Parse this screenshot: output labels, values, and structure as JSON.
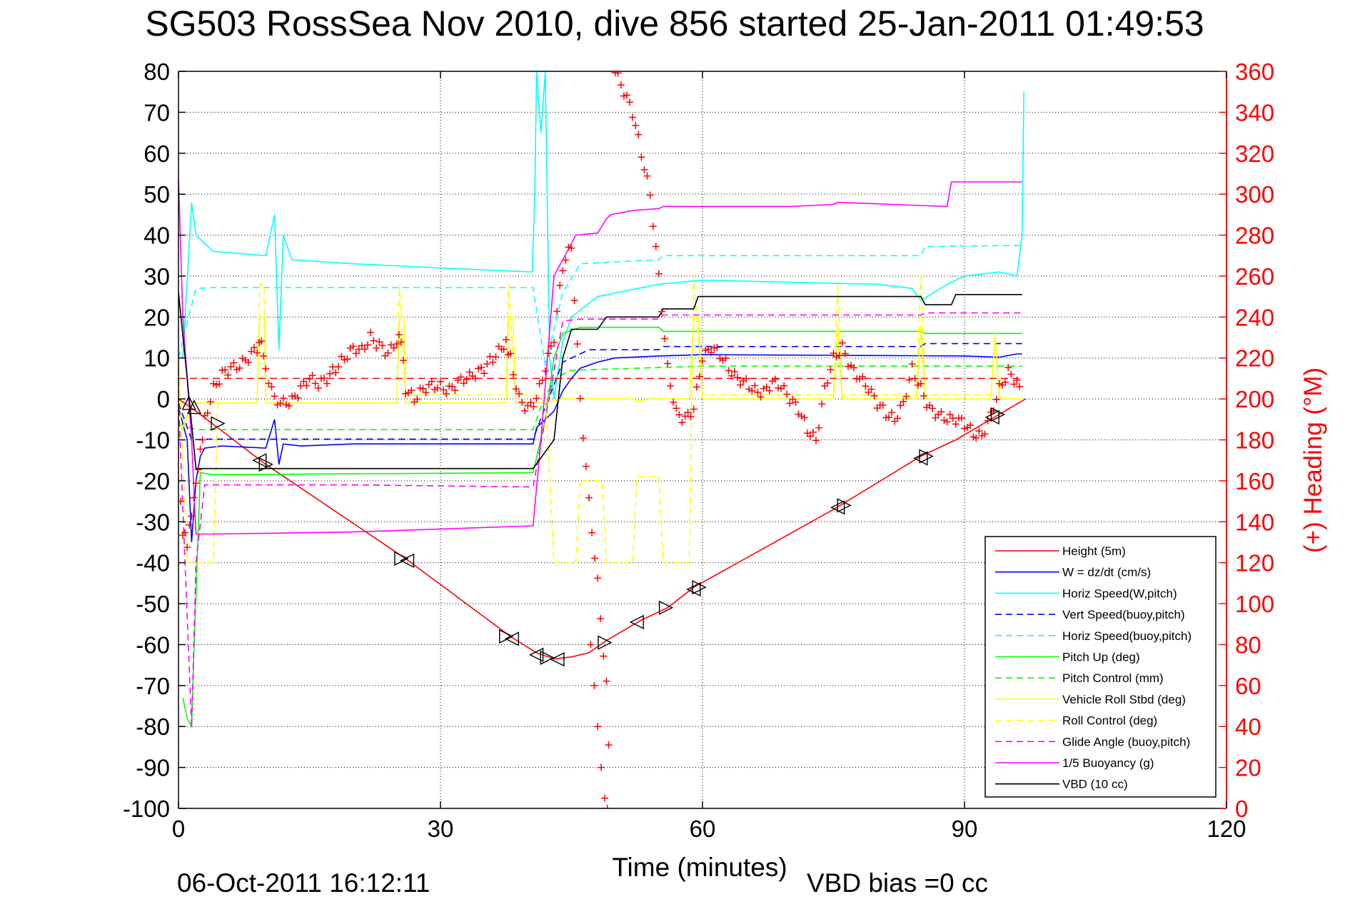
{
  "chart_data": {
    "type": "line",
    "title": "SG503 RossSea Nov 2010, dive 856 started 25-Jan-2011 01:49:53",
    "xlabel": "Time (minutes)",
    "ylabel": "",
    "y2label": "(+) Heading (°M)",
    "xlim": [
      0,
      120
    ],
    "ylim": [
      -100,
      80
    ],
    "y2lim": [
      0,
      360
    ],
    "x_ticks": [
      "0",
      "30",
      "60",
      "90",
      "120"
    ],
    "y_ticks": [
      "80",
      "70",
      "60",
      "50",
      "40",
      "30",
      "20",
      "10",
      "0",
      "-10",
      "-20",
      "-30",
      "-40",
      "-50",
      "-60",
      "-70",
      "-80",
      "-90",
      "-100"
    ],
    "y2_ticks": [
      "360",
      "340",
      "320",
      "300",
      "280",
      "260",
      "240",
      "220",
      "200",
      "180",
      "160",
      "140",
      "120",
      "100",
      "80",
      "60",
      "40",
      "20",
      "0"
    ],
    "grid": true,
    "legend_position": "bottom-right",
    "footer_date": "06-Oct-2011 16:12:11",
    "footer_note": "VBD bias =0 cc",
    "colors": {
      "red": "#ff0000",
      "blue": "#0000ff",
      "cyan": "#00ffff",
      "green": "#00ff00",
      "yellow": "#ffff00",
      "magenta": "#ff00ff",
      "black": "#000000"
    },
    "series": [
      {
        "name": "Height (5m)",
        "color": "#ff0000",
        "dash": "solid",
        "x": [
          0,
          2,
          10,
          26,
          38,
          41,
          43,
          45,
          47,
          49,
          53,
          56,
          59,
          75,
          85,
          89,
          93,
          97
        ],
        "y": [
          0,
          -3,
          -16,
          -39,
          -58,
          -62,
          -63.5,
          -63,
          -62,
          -59,
          -54,
          -51,
          -46,
          -27,
          -14,
          -10,
          -5,
          0
        ]
      },
      {
        "name": "W = dz/dt (cm/s)",
        "color": "#0000ff",
        "dash": "solid",
        "x": [
          0,
          1,
          1.5,
          2,
          2.5,
          3,
          5,
          10,
          11,
          11.5,
          12,
          14,
          20,
          30,
          40.6,
          41,
          43,
          44,
          45,
          46,
          48,
          50,
          55,
          60,
          70,
          80,
          90,
          94,
          96,
          96.6
        ],
        "y": [
          -2,
          -10,
          -35,
          -20,
          -14,
          -12,
          -11.5,
          -12,
          -5,
          -16,
          -11,
          -11.5,
          -11,
          -11,
          -11,
          -7,
          -3,
          2,
          5,
          7.5,
          9,
          10,
          10.5,
          10.8,
          10.7,
          10.6,
          10.5,
          10.2,
          11,
          11
        ]
      },
      {
        "name": "Horiz Speed(W,pitch)",
        "color": "#00ffff",
        "dash": "solid",
        "x": [
          0.5,
          1.5,
          2,
          4,
          10,
          11,
          11.5,
          12,
          13,
          20,
          30,
          40.5,
          40.8,
          41,
          41.5,
          42,
          42.5,
          43,
          44,
          45,
          48,
          55,
          60,
          70,
          80,
          84,
          85,
          88,
          90,
          94,
          96,
          96.6,
          96.8
        ],
        "y": [
          10,
          48,
          40,
          36,
          35,
          45,
          12,
          40,
          34,
          33,
          32,
          31,
          50,
          80,
          65,
          80,
          10,
          0,
          14,
          20,
          25,
          28,
          29,
          28.5,
          28,
          27,
          24,
          28,
          30,
          31,
          30,
          40,
          75
        ]
      },
      {
        "name": "Vert Speed(buoy,pitch)",
        "color": "#0000ff",
        "dash": "dashed",
        "x": [
          0,
          1.5,
          3,
          40.6,
          42,
          44,
          47,
          55,
          55.5,
          85,
          85.5,
          96.6
        ],
        "y": [
          -1,
          -10,
          -9.8,
          -9.8,
          -2,
          9,
          12,
          12,
          12.8,
          12.8,
          13.5,
          13.5
        ]
      },
      {
        "name": "Horiz Speed(buoy,pitch)",
        "color": "#00ffff",
        "dash": "dashed",
        "x": [
          0,
          2,
          4,
          40.6,
          42,
          44,
          46,
          55,
          55.5,
          85,
          85.5,
          96.6
        ],
        "y": [
          10,
          27,
          27.2,
          27.2,
          8,
          26,
          33,
          34,
          35,
          35,
          37.2,
          37.5
        ]
      },
      {
        "name": "Pitch Up (deg)",
        "color": "#00ff00",
        "dash": "solid",
        "x": [
          0.5,
          1,
          1.5,
          1.8,
          2.5,
          4,
          20,
          40.6,
          42,
          43,
          44,
          46,
          55,
          55.5,
          85,
          85.5,
          96.6
        ],
        "y": [
          -73,
          -78,
          -80,
          -60,
          -18,
          -18.5,
          -18.3,
          -18,
          -5,
          10,
          16,
          17.5,
          17.5,
          16.5,
          16.5,
          16,
          16
        ]
      },
      {
        "name": "Pitch Control (mm)",
        "color": "#00ff00",
        "dash": "dashed",
        "x": [
          0,
          2,
          3,
          40.6,
          41.5,
          43,
          45,
          60,
          96.6
        ],
        "y": [
          -6,
          -7.5,
          -7.5,
          -7.5,
          -2,
          5,
          7,
          8,
          8
        ]
      },
      {
        "name": "Vehicle Roll Stbd (deg)",
        "color": "#ffff00",
        "dash": "solid",
        "x": [
          0,
          1.5,
          2.5,
          9,
          9.3,
          9.8,
          10,
          25,
          25.3,
          25.8,
          26,
          37.5,
          37.8,
          38.3,
          38.6,
          41,
          42,
          44,
          47,
          48,
          49,
          52,
          52.5,
          54,
          55,
          56.5,
          57,
          58.5,
          59,
          59.5,
          60,
          75,
          75.5,
          76,
          84.5,
          85,
          85.5,
          93,
          93.5,
          94,
          96.6
        ],
        "y": [
          -10,
          -1,
          -1,
          -1,
          20,
          20,
          -1,
          -1,
          20,
          20,
          -1,
          -1,
          20,
          20,
          -1,
          -1,
          -1,
          0,
          0,
          0,
          0,
          0,
          -0.5,
          0,
          0,
          0,
          0,
          0,
          20,
          20,
          0,
          0,
          18,
          0,
          0,
          18,
          0,
          0,
          16,
          0,
          0
        ]
      },
      {
        "name": "Roll Control (deg)",
        "color": "#ffff00",
        "dash": "dashed",
        "x": [
          0,
          1,
          2,
          4,
          4.5,
          9,
          9.3,
          9.8,
          10,
          25,
          25.3,
          26,
          37.5,
          37.8,
          38.6,
          40.6,
          42,
          43,
          43.5,
          45.5,
          46,
          48.5,
          49,
          52,
          52.5,
          55,
          55.5,
          58.5,
          59,
          60,
          75,
          75.5,
          76,
          84.5,
          85,
          85.5,
          93,
          93.5,
          94,
          96.6
        ],
        "y": [
          10,
          -40,
          -40,
          -40,
          -1,
          -1,
          28,
          28,
          -1,
          -1,
          28,
          1,
          1,
          28,
          1,
          1,
          1,
          -40,
          -40,
          -40,
          -20,
          -20,
          -40,
          -40,
          -19,
          -19,
          -40,
          -40,
          30,
          1,
          1,
          28,
          1,
          1,
          30,
          1,
          1,
          14,
          0,
          0
        ]
      },
      {
        "name": "Glide Angle (buoy,pitch)",
        "color": "#ff00ff",
        "dash": "dashed",
        "x": [
          0,
          1.5,
          2,
          3,
          20,
          40.6,
          42,
          44,
          46,
          55,
          55.5,
          85,
          85.5,
          96.6
        ],
        "y": [
          0,
          -80,
          -40,
          -21,
          -21,
          -21.5,
          -5,
          19,
          19.5,
          19.5,
          20.5,
          20.5,
          21,
          21
        ]
      },
      {
        "name": "1/5 Buoyancy (g)",
        "color": "#ff00ff",
        "dash": "solid",
        "x": [
          0,
          0.5,
          1.5,
          2,
          4,
          20,
          40.6,
          41.5,
          43,
          45.5,
          48,
          49,
          49.5,
          52,
          55,
          55.5,
          60,
          70,
          75,
          75.5,
          88,
          88.5,
          96.6
        ],
        "y": [
          54,
          20,
          -10,
          -33,
          -33,
          -32.5,
          -31,
          -10,
          30,
          40,
          40.5,
          44,
          45,
          46,
          46.5,
          47,
          47,
          47,
          47.5,
          48,
          47,
          53,
          53
        ]
      },
      {
        "name": "VBD (10 cc)",
        "color": "#000000",
        "dash": "solid",
        "x": [
          0,
          1,
          2,
          3,
          40.6,
          43,
          44,
          45,
          48,
          49,
          55,
          55.5,
          59,
          59.5,
          85,
          85.5,
          88.5,
          89,
          96.6
        ],
        "y": [
          26,
          5,
          -17,
          -17,
          -17,
          -10,
          10,
          17,
          17,
          20,
          20,
          22,
          22,
          25,
          25,
          23,
          23,
          25.5,
          25.5
        ]
      }
    ],
    "heading": {
      "name": "(+) Heading (°M)",
      "color": "#ff0000",
      "x": [
        0,
        0.5,
        1,
        1.5,
        2,
        2.5,
        3,
        4,
        5,
        6,
        7,
        8,
        9,
        9.5,
        10,
        11,
        12,
        13,
        14,
        15,
        16,
        17,
        18,
        19,
        20,
        21,
        22,
        23,
        24,
        25,
        25.5,
        26,
        27,
        28,
        29,
        30,
        31,
        32,
        33,
        34,
        35,
        36,
        37,
        37.5,
        38,
        39,
        40,
        41,
        42,
        43,
        44,
        45,
        46,
        47,
        48,
        49,
        49.5,
        50,
        51,
        52,
        53,
        54,
        55,
        56,
        57,
        58,
        59,
        60,
        61,
        62,
        63,
        64,
        65,
        66,
        67,
        68,
        69,
        70,
        71,
        72,
        73,
        74,
        75,
        76,
        77,
        78,
        79,
        80,
        81,
        82,
        83,
        84,
        85,
        86,
        87,
        88,
        89,
        90,
        91,
        92,
        93,
        94,
        95,
        96,
        96.6
      ],
      "y": [
        160,
        135,
        130,
        145,
        160,
        175,
        190,
        205,
        212,
        215,
        216,
        220,
        225,
        230,
        215,
        200,
        198,
        199,
        205,
        210,
        207,
        210,
        215,
        220,
        225,
        224,
        230,
        226,
        222,
        228,
        230,
        205,
        200,
        205,
        207,
        206,
        204,
        208,
        210,
        212,
        215,
        220,
        225,
        228,
        220,
        200,
        195,
        200,
        215,
        230,
        265,
        275,
        200,
        150,
        110,
        60,
        0,
        360,
        350,
        340,
        320,
        300,
        260,
        215,
        193,
        190,
        195,
        220,
        225,
        222,
        215,
        210,
        208,
        204,
        203,
        208,
        206,
        200,
        195,
        185,
        180,
        205,
        220,
        225,
        215,
        210,
        205,
        198,
        193,
        190,
        198,
        215,
        205,
        195,
        192,
        190,
        190,
        188,
        183,
        182,
        192,
        205,
        213,
        208,
        200
      ]
    },
    "markers": [
      {
        "x": 1.2,
        "y": -1,
        "dir": "up"
      },
      {
        "x": 1.8,
        "y": -2,
        "dir": "up"
      },
      {
        "x": 4.5,
        "y": -6,
        "dir": "right"
      },
      {
        "x": 9.3,
        "y": -15,
        "dir": "left"
      },
      {
        "x": 10,
        "y": -16,
        "dir": "right"
      },
      {
        "x": 25.5,
        "y": -39,
        "dir": "right"
      },
      {
        "x": 26.2,
        "y": -39.5,
        "dir": "left"
      },
      {
        "x": 37.5,
        "y": -58,
        "dir": "right"
      },
      {
        "x": 38.2,
        "y": -58.6,
        "dir": "left"
      },
      {
        "x": 41,
        "y": -62.5,
        "dir": "left"
      },
      {
        "x": 42.2,
        "y": -63.2,
        "dir": "right"
      },
      {
        "x": 43.4,
        "y": -63.6,
        "dir": "left"
      },
      {
        "x": 48.8,
        "y": -59.5,
        "dir": "right"
      },
      {
        "x": 52.5,
        "y": -54.5,
        "dir": "left"
      },
      {
        "x": 55.8,
        "y": -51,
        "dir": "right"
      },
      {
        "x": 59,
        "y": -46.5,
        "dir": "left"
      },
      {
        "x": 59.6,
        "y": -46,
        "dir": "right"
      },
      {
        "x": 75.5,
        "y": -26.5,
        "dir": "left"
      },
      {
        "x": 76.2,
        "y": -26,
        "dir": "right"
      },
      {
        "x": 85,
        "y": -14.5,
        "dir": "left"
      },
      {
        "x": 85.6,
        "y": -14,
        "dir": "right"
      },
      {
        "x": 93.2,
        "y": -4.5,
        "dir": "left"
      },
      {
        "x": 93.8,
        "y": -3.8,
        "dir": "right"
      }
    ]
  }
}
